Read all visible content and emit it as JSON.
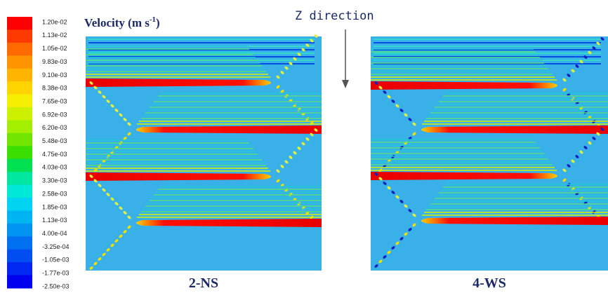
{
  "legend": {
    "title": "Velocity (m s",
    "title_superscript": "-1",
    "title_end": ")",
    "labels": [
      "1.20e-02",
      "1.13e-02",
      "1.05e-02",
      "9.83e-03",
      "9.10e-03",
      "8.38e-03",
      "7.65e-03",
      "6.92e-03",
      "6.20e-03",
      "5.48e-03",
      "4.75e-03",
      "4.03e-03",
      "3.30e-03",
      "2.58e-03",
      "1.85e-03",
      "1.13e-03",
      "4.00e-04",
      "-3.25e-04",
      "-1.05e-03",
      "-1.77e-03",
      "-2.50e-03"
    ],
    "colors": [
      "#ff0000",
      "#ff3a00",
      "#ff6a00",
      "#ff9400",
      "#ffb400",
      "#ffd400",
      "#f4ee00",
      "#cdf000",
      "#a4ee00",
      "#72e600",
      "#3ade00",
      "#00e050",
      "#00e6a0",
      "#00e8d8",
      "#00d4f2",
      "#00b4f2",
      "#0094f0",
      "#0070f0",
      "#004ef0",
      "#0028f0",
      "#0000f0"
    ]
  },
  "annotation": "Z direction",
  "panels": [
    {
      "label": "2-NS"
    },
    {
      "label": "4-WS"
    }
  ]
}
